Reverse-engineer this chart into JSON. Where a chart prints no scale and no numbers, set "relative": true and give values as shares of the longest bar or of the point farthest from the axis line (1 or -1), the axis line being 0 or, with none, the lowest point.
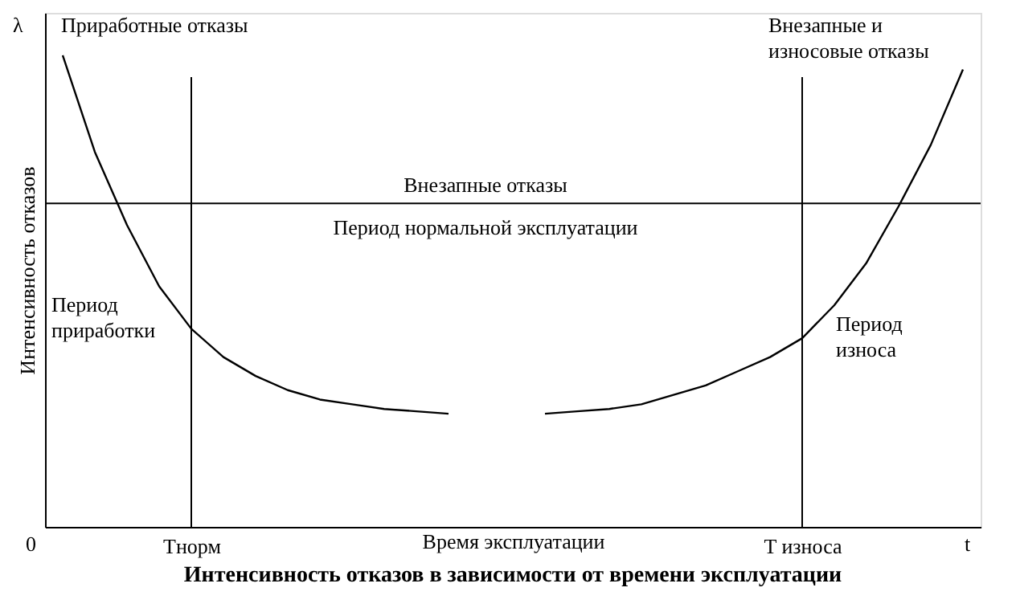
{
  "chart_data": {
    "type": "line",
    "relative": true,
    "title": "Интенсивность отказов в зависимости от времени эксплуатации",
    "xlabel": "Время эксплуатации",
    "ylabel": "Интенсивность отказов",
    "categories": [
      null,
      null,
      null,
      null,
      "Тнорм",
      null,
      null,
      null,
      null,
      null,
      null,
      null,
      null,
      null,
      null,
      null,
      null,
      null,
      null,
      null,
      null,
      null,
      null,
      "T износа",
      null,
      null,
      null,
      null,
      null
    ],
    "series": [
      {
        "color": "#000000",
        "values": [
          1.0,
          0.795,
          0.64,
          0.51,
          0.42,
          0.36,
          0.32,
          0.29,
          0.27,
          0.26,
          0.25,
          0.245,
          0.24,
          null,
          null,
          0.24,
          0.245,
          0.25,
          0.26,
          0.28,
          0.3,
          0.33,
          0.36,
          0.4,
          0.47,
          0.56,
          0.68,
          0.81,
          0.97
        ]
      }
    ],
    "ref_lines": [
      {
        "axis": "y",
        "value": 0.686,
        "label": "Внезапные отказы"
      },
      {
        "axis": "x",
        "value": "Тнорм"
      },
      {
        "axis": "x",
        "value": "T износа"
      }
    ],
    "annotations": [
      "λ",
      "0",
      "t",
      "Приработные отказы",
      "Внезапные и\nизносовые отказы",
      "Период нормальной эксплуатации",
      "Период\nприработки",
      "Период\nизноса"
    ],
    "grid": false,
    "marker": "none",
    "line_style": "solid"
  }
}
